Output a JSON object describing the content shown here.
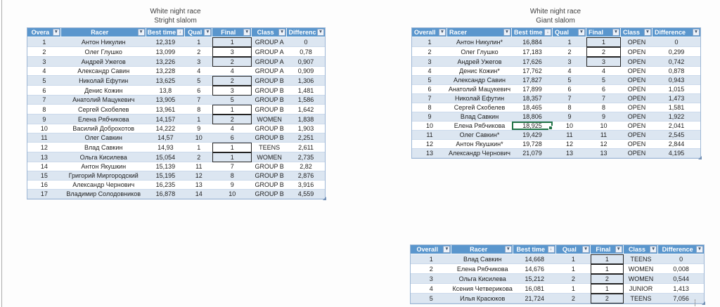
{
  "window": {
    "background": "#FDFDFD",
    "left_edge_color": "#ACACAC"
  },
  "colors": {
    "header_bg": "#5A96CD",
    "header_text": "#FFFFFF",
    "band_row": "#DCE6F1",
    "plain_row": "#FFFFFF",
    "row_border": "#CBD9EB",
    "gold": "#E5C700",
    "silver": "#BFBFBF",
    "bronze": "#B08600",
    "medal_border": "#232323",
    "selection_green": "#217346",
    "body_text": "#1E1E1E",
    "title_text": "#3F3F3F"
  },
  "icons": {
    "filter-dropdown": "▼",
    "sort-filter": "↓",
    "resize-handle": "triangle"
  },
  "tables": [
    {
      "name": "straight-slalom",
      "title": [
        "White night race",
        "Stright slalom"
      ],
      "columns": [
        {
          "label": "Overa",
          "icon": "filter-dropdown"
        },
        {
          "label": "Racer",
          "icon": "filter-dropdown"
        },
        {
          "label": "Best time",
          "icon": "sort-filter"
        },
        {
          "label": "Qual",
          "icon": "filter-dropdown"
        },
        {
          "label": "Final",
          "icon": "filter-dropdown"
        },
        {
          "label": "Class",
          "icon": "filter-dropdown"
        },
        {
          "label": "Differenc",
          "icon": "filter-dropdown"
        }
      ],
      "rows": [
        {
          "cells": [
            "1",
            "Антон Никулин",
            "12,319",
            "1",
            "1",
            "GROUP A",
            "0"
          ],
          "medal": "gold"
        },
        {
          "cells": [
            "2",
            "Олег Глушко",
            "13,099",
            "2",
            "3",
            "GROUP A",
            "0,78"
          ],
          "medal": "bronze"
        },
        {
          "cells": [
            "3",
            "Андрей Ужегов",
            "13,226",
            "3",
            "2",
            "GROUP A",
            "0,907"
          ],
          "medal": "silver"
        },
        {
          "cells": [
            "4",
            "Александр Савин",
            "13,228",
            "4",
            "4",
            "GROUP A",
            "0,909"
          ],
          "medal": null
        },
        {
          "cells": [
            "5",
            "Николай Ефутин",
            "13,625",
            "5",
            "2",
            "GROUP B",
            "1,306"
          ],
          "medal": "silver"
        },
        {
          "cells": [
            "6",
            "Денис Кожин",
            "13,8",
            "6",
            "3",
            "GROUP B",
            "1,481"
          ],
          "medal": "bronze"
        },
        {
          "cells": [
            "7",
            "Анатолий Мацукевич",
            "13,905",
            "7",
            "5",
            "GROUP B",
            "1,586"
          ],
          "medal": null
        },
        {
          "cells": [
            "8",
            "Сергей Скобелев",
            "13,961",
            "8",
            "1",
            "GROUP B",
            "1,642"
          ],
          "medal": "gold"
        },
        {
          "cells": [
            "9",
            "Елена Рябчикова",
            "14,157",
            "1",
            "2",
            "WOMEN",
            "1,838"
          ],
          "medal": "silver"
        },
        {
          "cells": [
            "10",
            "Василий Доброхотов",
            "14,222",
            "9",
            "4",
            "GROUP B",
            "1,903"
          ],
          "medal": null
        },
        {
          "cells": [
            "11",
            "Олег Савкин",
            "14,57",
            "10",
            "6",
            "GROUP B",
            "2,251"
          ],
          "medal": null
        },
        {
          "cells": [
            "12",
            "Влад Савкин",
            "14,93",
            "1",
            "1",
            "TEENS",
            "2,611"
          ],
          "medal": "gold"
        },
        {
          "cells": [
            "13",
            "Ольга Кисилева",
            "15,054",
            "2",
            "1",
            "WOMEN",
            "2,735"
          ],
          "medal": "gold"
        },
        {
          "cells": [
            "14",
            "Антон Якушкин",
            "15,139",
            "11",
            "7",
            "GROUP B",
            "2,82"
          ],
          "medal": null
        },
        {
          "cells": [
            "15",
            "Григорий Миргородский",
            "15,195",
            "12",
            "8",
            "GROUP B",
            "2,876"
          ],
          "medal": null
        },
        {
          "cells": [
            "16",
            "Александр Чернович",
            "16,235",
            "13",
            "9",
            "GROUP B",
            "3,916"
          ],
          "medal": null
        },
        {
          "cells": [
            "17",
            "Владимир Солодовников",
            "16,878",
            "14",
            "10",
            "GROUP B",
            "4,559"
          ],
          "medal": null
        }
      ]
    },
    {
      "name": "giant-slalom",
      "title": [
        "White night race",
        "Giant slalom"
      ],
      "columns": [
        {
          "label": "Overall",
          "icon": "filter-dropdown"
        },
        {
          "label": "Racer",
          "icon": "filter-dropdown"
        },
        {
          "label": "Best time",
          "icon": "sort-filter"
        },
        {
          "label": "Qual",
          "icon": "filter-dropdown"
        },
        {
          "label": "Final",
          "icon": "filter-dropdown"
        },
        {
          "label": "Class",
          "icon": "filter-dropdown"
        },
        {
          "label": "Difference",
          "icon": "filter-dropdown"
        }
      ],
      "selected_cell": {
        "row": 9,
        "col": 2
      },
      "rows": [
        {
          "cells": [
            "1",
            "Антон Никулин*",
            "16,884",
            "1",
            "1",
            "OPEN",
            "0"
          ],
          "medal": "gold"
        },
        {
          "cells": [
            "2",
            "Олег Глушко",
            "17,183",
            "2",
            "2",
            "OPEN",
            "0,299"
          ],
          "medal": "silver"
        },
        {
          "cells": [
            "3",
            "Андрей Ужегов",
            "17,626",
            "3",
            "3",
            "OPEN",
            "0,742"
          ],
          "medal": "bronze"
        },
        {
          "cells": [
            "4",
            "Денис Кожин*",
            "17,762",
            "4",
            "4",
            "OPEN",
            "0,878"
          ],
          "medal": null
        },
        {
          "cells": [
            "5",
            "Александр Савин",
            "17,827",
            "5",
            "5",
            "OPEN",
            "0,943"
          ],
          "medal": null
        },
        {
          "cells": [
            "6",
            "Анатолий Мацукевич",
            "17,899",
            "6",
            "6",
            "OPEN",
            "1,015"
          ],
          "medal": null
        },
        {
          "cells": [
            "7",
            "Николай Ефутин",
            "18,357",
            "7",
            "7",
            "OPEN",
            "1,473"
          ],
          "medal": null
        },
        {
          "cells": [
            "8",
            "Сергей Скобелев",
            "18,465",
            "8",
            "8",
            "OPEN",
            "1,581"
          ],
          "medal": null
        },
        {
          "cells": [
            "9",
            "Влад Савкин",
            "18,806",
            "9",
            "9",
            "OPEN",
            "1,922"
          ],
          "medal": null
        },
        {
          "cells": [
            "10",
            "Елена Рябчикова",
            "18,925",
            "10",
            "10",
            "OPEN",
            "2,041"
          ],
          "medal": null
        },
        {
          "cells": [
            "11",
            "Олег Савкин*",
            "19,429",
            "11",
            "11",
            "OPEN",
            "2,545"
          ],
          "medal": null
        },
        {
          "cells": [
            "12",
            "Антон Якушкин*",
            "19,728",
            "12",
            "12",
            "OPEN",
            "2,844"
          ],
          "medal": null
        },
        {
          "cells": [
            "13",
            "Александр Чернович",
            "21,079",
            "13",
            "13",
            "OPEN",
            "4,195"
          ],
          "medal": null
        }
      ]
    },
    {
      "name": "finals",
      "title": null,
      "columns": [
        {
          "label": "Overall",
          "icon": "filter-dropdown"
        },
        {
          "label": "Racer",
          "icon": "filter-dropdown"
        },
        {
          "label": "Best time",
          "icon": "sort-filter"
        },
        {
          "label": "Qual",
          "icon": "filter-dropdown"
        },
        {
          "label": "Final",
          "icon": "filter-dropdown"
        },
        {
          "label": "Class",
          "icon": "filter-dropdown"
        },
        {
          "label": "Difference",
          "icon": "filter-dropdown"
        }
      ],
      "rows": [
        {
          "cells": [
            "1",
            "Влад Савкин",
            "14,668",
            "1",
            "1",
            "TEENS",
            "0"
          ],
          "medal": "gold"
        },
        {
          "cells": [
            "2",
            "Елена Рябчикова",
            "14,676",
            "1",
            "1",
            "WOMEN",
            "0,008"
          ],
          "medal": "gold"
        },
        {
          "cells": [
            "3",
            "Ольга Кисилева",
            "15,212",
            "2",
            "2",
            "WOMEN",
            "0,544"
          ],
          "medal": "silver"
        },
        {
          "cells": [
            "4",
            "Ксения Четверикова",
            "16,081",
            "1",
            "1",
            "JUNIOR",
            "1,413"
          ],
          "medal": "gold"
        },
        {
          "cells": [
            "5",
            "Илья Красюков",
            "21,724",
            "2",
            "2",
            "TEENS",
            "7,056"
          ],
          "medal": "silver"
        }
      ]
    }
  ]
}
